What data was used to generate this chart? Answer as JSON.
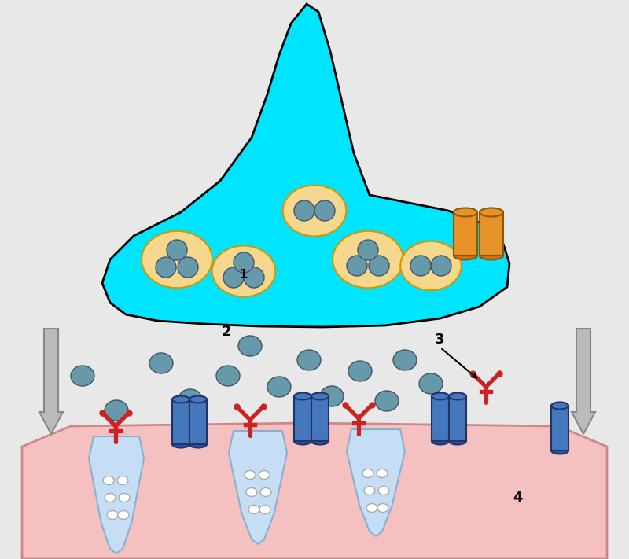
{
  "background_color": "#e8e8e8",
  "nerve_terminal_color": "#00e5ff",
  "nerve_terminal_outline": "#000000",
  "vesicle_outer_color": "#f5d78e",
  "vesicle_inner_color": "#6699aa",
  "neurotransmitter_color": "#6699aa",
  "muscle_color": "#f5c0c0",
  "muscle_outline": "#cc8888",
  "junctional_fold_color": "#c5ddf5",
  "junctional_fold_outline": "#8ab0d0",
  "receptor_color": "#cc2222",
  "channel_color": "#4477bb",
  "channel_outline": "#223366",
  "orange_cylinder_color": "#e8922a",
  "orange_cylinder_outline": "#8b5a00",
  "arrow_color": "#bbbbbb",
  "text_color": "#000000",
  "label_1": "1",
  "label_2": "2",
  "label_3": "3",
  "label_4": "4"
}
